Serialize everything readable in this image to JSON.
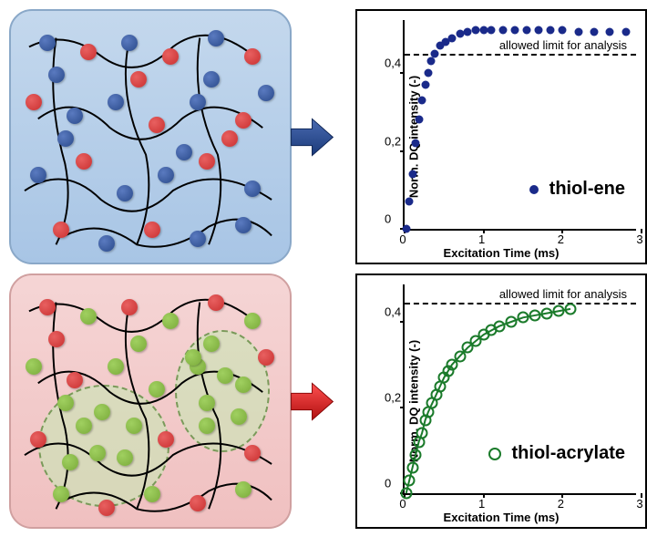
{
  "panels": {
    "top": {
      "bg_gradient": [
        "#c4d8ed",
        "#a8c5e5"
      ],
      "border": "#8aa8c8",
      "bead_colors": {
        "a": "#2a4a8a",
        "b": "#c93030"
      },
      "bead_hi": {
        "a": "#5a7ac0",
        "b": "#e86060"
      },
      "arrow_color": "#2a4a8a"
    },
    "bottom": {
      "bg_gradient": [
        "#f5d5d5",
        "#f0c0c0"
      ],
      "border": "#d0a0a0",
      "bead_colors": {
        "a": "#7aaa3a",
        "b": "#c93030"
      },
      "bead_hi": {
        "a": "#a0d060",
        "b": "#e86060"
      },
      "blob_fill": "rgba(200,230,180,0.6)",
      "blob_border": "#7a9a5a",
      "arrow_color": "#d02020"
    }
  },
  "chart1": {
    "type": "scatter",
    "title_legend": "thiol-ene",
    "marker": "filled",
    "color": "#1a2a8a",
    "ylabel": "Norm. DQ intensity (-)",
    "xlabel": "Excitation Time (ms)",
    "xlim": [
      0,
      3
    ],
    "ylim": [
      0,
      0.55
    ],
    "xticks": [
      0,
      1,
      2,
      3
    ],
    "yticks": [
      0,
      0.2,
      0.4
    ],
    "ytick_labels": [
      "0",
      "0,2",
      "0,4"
    ],
    "allowed_limit_y": 0.445,
    "allowed_label": "allowed limit for analysis",
    "marker_size": 9,
    "points": [
      [
        0.02,
        0.0
      ],
      [
        0.06,
        0.07
      ],
      [
        0.1,
        0.14
      ],
      [
        0.14,
        0.22
      ],
      [
        0.18,
        0.28
      ],
      [
        0.22,
        0.33
      ],
      [
        0.26,
        0.37
      ],
      [
        0.3,
        0.4
      ],
      [
        0.34,
        0.43
      ],
      [
        0.38,
        0.45
      ],
      [
        0.45,
        0.47
      ],
      [
        0.52,
        0.48
      ],
      [
        0.6,
        0.49
      ],
      [
        0.7,
        0.5
      ],
      [
        0.8,
        0.505
      ],
      [
        0.9,
        0.51
      ],
      [
        1.0,
        0.51
      ],
      [
        1.1,
        0.51
      ],
      [
        1.25,
        0.51
      ],
      [
        1.4,
        0.51
      ],
      [
        1.55,
        0.51
      ],
      [
        1.7,
        0.51
      ],
      [
        1.85,
        0.51
      ],
      [
        2.0,
        0.51
      ],
      [
        2.2,
        0.505
      ],
      [
        2.4,
        0.505
      ],
      [
        2.6,
        0.505
      ],
      [
        2.8,
        0.505
      ]
    ]
  },
  "chart2": {
    "type": "scatter-line",
    "title_legend": "thiol-acrylate",
    "marker": "open",
    "color": "#1a7a2a",
    "ylabel": "Norm. DQ intensity (-)",
    "xlabel": "Excitation Time (ms)",
    "xlim": [
      0,
      3
    ],
    "ylim": [
      0,
      0.5
    ],
    "xticks": [
      0,
      1,
      2,
      3
    ],
    "yticks": [
      0,
      0.2,
      0.4
    ],
    "ytick_labels": [
      "0",
      "0,2",
      "0,4"
    ],
    "allowed_limit_y": 0.44,
    "allowed_label": "allowed limit for analysis",
    "marker_size": 9,
    "line_width": 2,
    "points": [
      [
        0.02,
        0.0
      ],
      [
        0.06,
        0.03
      ],
      [
        0.1,
        0.06
      ],
      [
        0.14,
        0.09
      ],
      [
        0.18,
        0.12
      ],
      [
        0.22,
        0.14
      ],
      [
        0.26,
        0.17
      ],
      [
        0.3,
        0.19
      ],
      [
        0.35,
        0.21
      ],
      [
        0.4,
        0.23
      ],
      [
        0.45,
        0.25
      ],
      [
        0.5,
        0.27
      ],
      [
        0.55,
        0.285
      ],
      [
        0.6,
        0.3
      ],
      [
        0.7,
        0.32
      ],
      [
        0.8,
        0.34
      ],
      [
        0.9,
        0.355
      ],
      [
        1.0,
        0.37
      ],
      [
        1.1,
        0.38
      ],
      [
        1.2,
        0.39
      ],
      [
        1.35,
        0.4
      ],
      [
        1.5,
        0.41
      ],
      [
        1.65,
        0.415
      ],
      [
        1.8,
        0.42
      ],
      [
        1.95,
        0.425
      ],
      [
        2.1,
        0.43
      ]
    ]
  }
}
